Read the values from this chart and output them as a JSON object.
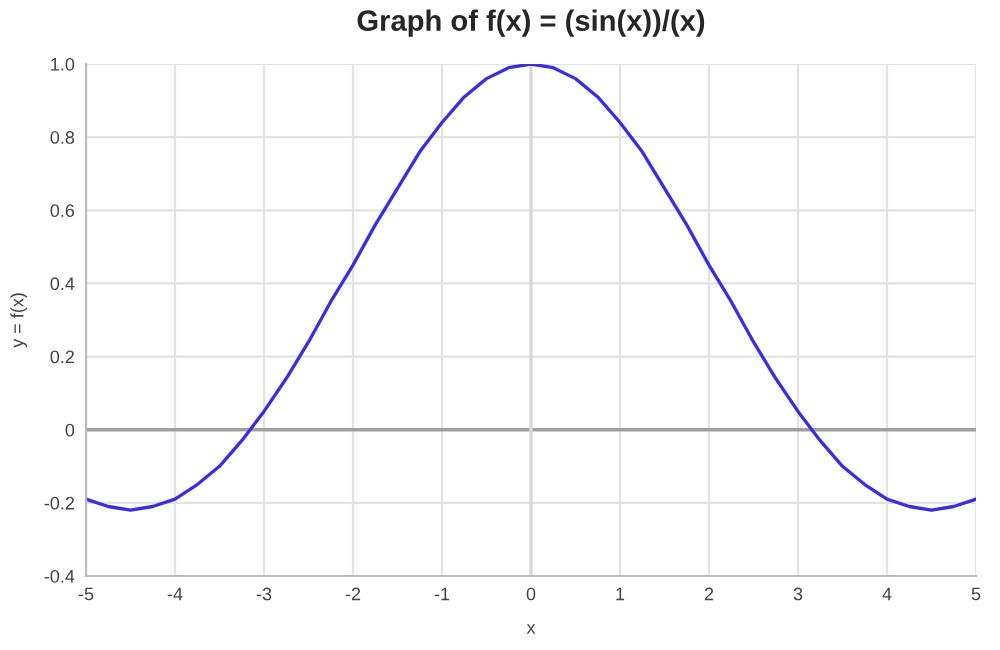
{
  "chart_data": {
    "type": "line",
    "title": "Graph of f(x) = (sin(x))/(x)",
    "xlabel": "x",
    "ylabel": "y = f(x)",
    "x": [
      -5,
      -4.75,
      -4.5,
      -4.25,
      -4,
      -3.75,
      -3.5,
      -3.25,
      -3,
      -2.75,
      -2.5,
      -2.25,
      -2,
      -1.75,
      -1.5,
      -1.25,
      -1,
      -0.75,
      -0.5,
      -0.25,
      0,
      0.25,
      0.5,
      0.75,
      1,
      1.25,
      1.5,
      1.75,
      2,
      2.25,
      2.5,
      2.75,
      3,
      3.25,
      3.5,
      3.75,
      4,
      4.25,
      4.5,
      4.75,
      5
    ],
    "series": [
      {
        "color": "#3b2ee0",
        "values": [
          -0.19,
          -0.21,
          -0.22,
          -0.21,
          -0.19,
          -0.15,
          -0.1,
          -0.03,
          0.05,
          0.14,
          0.24,
          0.35,
          0.45,
          0.56,
          0.66,
          0.76,
          0.84,
          0.91,
          0.96,
          0.99,
          1.0,
          0.99,
          0.96,
          0.91,
          0.84,
          0.76,
          0.66,
          0.56,
          0.45,
          0.35,
          0.24,
          0.14,
          0.05,
          -0.03,
          -0.1,
          -0.15,
          -0.19,
          -0.21,
          -0.22,
          -0.21,
          -0.19
        ]
      }
    ],
    "xlim": [
      -5,
      5
    ],
    "xticks": [
      -5,
      -4,
      -3,
      -2,
      -1,
      0,
      1,
      2,
      3,
      4,
      5
    ],
    "ylim": [
      -0.4,
      1.0
    ],
    "yticks": [
      {
        "value": -0.4,
        "label": "-0.4"
      },
      {
        "value": -0.2,
        "label": "-0.2"
      },
      {
        "value": 0,
        "label": "0"
      },
      {
        "value": 0.2,
        "label": "0.2"
      },
      {
        "value": 0.4,
        "label": "0.4"
      },
      {
        "value": 0.6,
        "label": "0.6"
      },
      {
        "value": 0.8,
        "label": "0.8"
      },
      {
        "value": 1.0,
        "label": "1.0"
      }
    ],
    "grid": true,
    "marker": "none",
    "line_style": "solid",
    "ref_lines": [
      {
        "axis": "y",
        "value": 0,
        "color": "#a0a0a0"
      },
      {
        "axis": "x",
        "value": 0,
        "color": "#d8d8d8"
      }
    ]
  }
}
